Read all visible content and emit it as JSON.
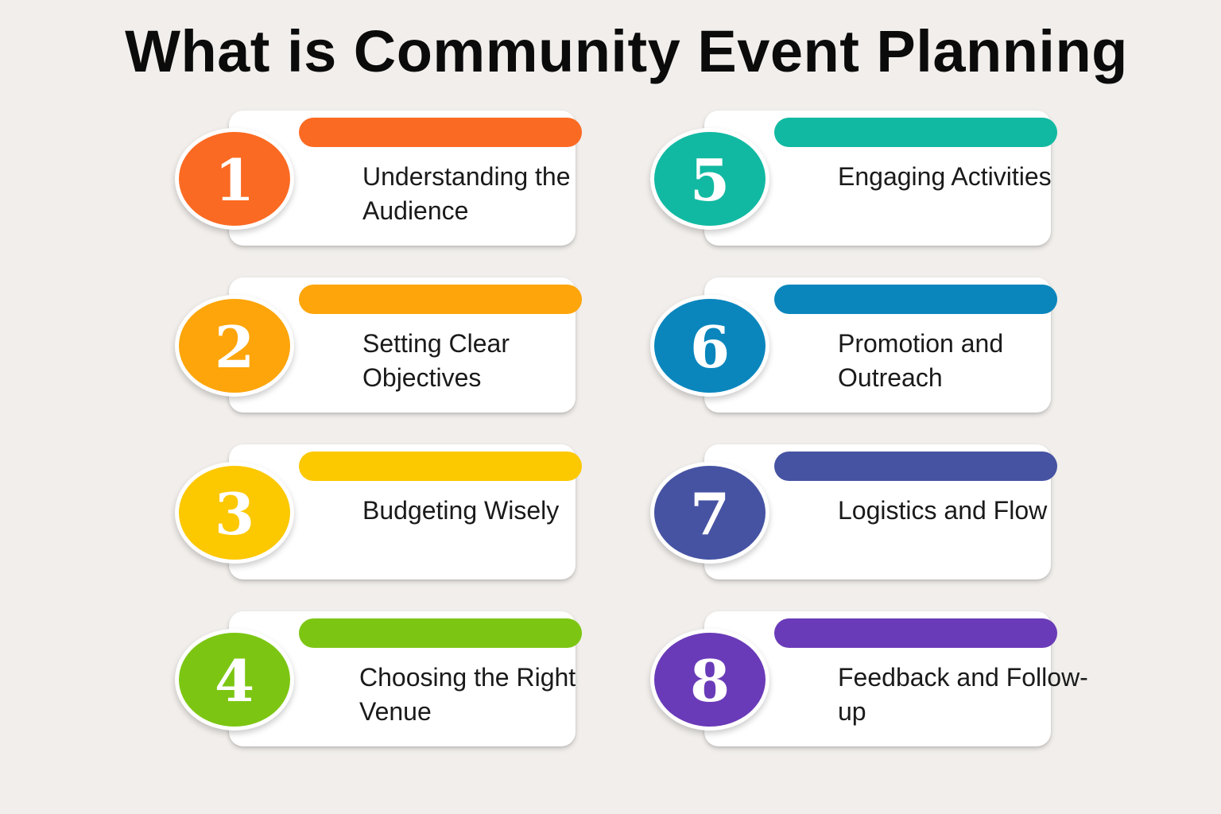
{
  "title": "What is Community Event Planning",
  "steps": [
    {
      "number": "1",
      "label": "Understanding the Audience",
      "color": "#fb6a22"
    },
    {
      "number": "2",
      "label": "Setting Clear Objectives",
      "color": "#fda50a"
    },
    {
      "number": "3",
      "label": "Budgeting Wisely",
      "color": "#fcc800"
    },
    {
      "number": "4",
      "label": "Choosing the Right Venue",
      "color": "#7cc613"
    },
    {
      "number": "5",
      "label": "Engaging Activities",
      "color": "#12b9a2"
    },
    {
      "number": "6",
      "label": "Promotion and Outreach",
      "color": "#0a86bd"
    },
    {
      "number": "7",
      "label": "Logistics and Flow",
      "color": "#4653a3"
    },
    {
      "number": "8",
      "label": "Feedback and Follow-up",
      "color": "#6a3bb8"
    }
  ]
}
